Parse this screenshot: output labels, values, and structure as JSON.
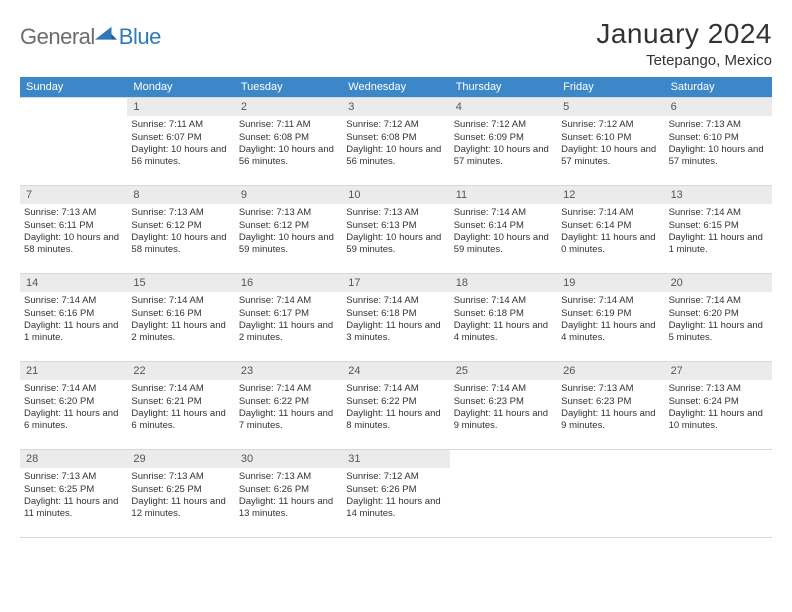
{
  "brand": {
    "general": "General",
    "blue": "Blue",
    "icon_color": "#2f79b9",
    "general_color": "#6c6c6c"
  },
  "title": "January 2024",
  "subtitle": "Tetepango, Mexico",
  "colors": {
    "header_bg": "#3b87c8",
    "header_text": "#ffffff",
    "daynum_bg": "#ebebeb",
    "border": "#d8d8d8",
    "text": "#333333"
  },
  "weekdays": [
    "Sunday",
    "Monday",
    "Tuesday",
    "Wednesday",
    "Thursday",
    "Friday",
    "Saturday"
  ],
  "start_offset": 1,
  "days": [
    {
      "n": 1,
      "sunrise": "7:11 AM",
      "sunset": "6:07 PM",
      "daylight": "10 hours and 56 minutes."
    },
    {
      "n": 2,
      "sunrise": "7:11 AM",
      "sunset": "6:08 PM",
      "daylight": "10 hours and 56 minutes."
    },
    {
      "n": 3,
      "sunrise": "7:12 AM",
      "sunset": "6:08 PM",
      "daylight": "10 hours and 56 minutes."
    },
    {
      "n": 4,
      "sunrise": "7:12 AM",
      "sunset": "6:09 PM",
      "daylight": "10 hours and 57 minutes."
    },
    {
      "n": 5,
      "sunrise": "7:12 AM",
      "sunset": "6:10 PM",
      "daylight": "10 hours and 57 minutes."
    },
    {
      "n": 6,
      "sunrise": "7:13 AM",
      "sunset": "6:10 PM",
      "daylight": "10 hours and 57 minutes."
    },
    {
      "n": 7,
      "sunrise": "7:13 AM",
      "sunset": "6:11 PM",
      "daylight": "10 hours and 58 minutes."
    },
    {
      "n": 8,
      "sunrise": "7:13 AM",
      "sunset": "6:12 PM",
      "daylight": "10 hours and 58 minutes."
    },
    {
      "n": 9,
      "sunrise": "7:13 AM",
      "sunset": "6:12 PM",
      "daylight": "10 hours and 59 minutes."
    },
    {
      "n": 10,
      "sunrise": "7:13 AM",
      "sunset": "6:13 PM",
      "daylight": "10 hours and 59 minutes."
    },
    {
      "n": 11,
      "sunrise": "7:14 AM",
      "sunset": "6:14 PM",
      "daylight": "10 hours and 59 minutes."
    },
    {
      "n": 12,
      "sunrise": "7:14 AM",
      "sunset": "6:14 PM",
      "daylight": "11 hours and 0 minutes."
    },
    {
      "n": 13,
      "sunrise": "7:14 AM",
      "sunset": "6:15 PM",
      "daylight": "11 hours and 1 minute."
    },
    {
      "n": 14,
      "sunrise": "7:14 AM",
      "sunset": "6:16 PM",
      "daylight": "11 hours and 1 minute."
    },
    {
      "n": 15,
      "sunrise": "7:14 AM",
      "sunset": "6:16 PM",
      "daylight": "11 hours and 2 minutes."
    },
    {
      "n": 16,
      "sunrise": "7:14 AM",
      "sunset": "6:17 PM",
      "daylight": "11 hours and 2 minutes."
    },
    {
      "n": 17,
      "sunrise": "7:14 AM",
      "sunset": "6:18 PM",
      "daylight": "11 hours and 3 minutes."
    },
    {
      "n": 18,
      "sunrise": "7:14 AM",
      "sunset": "6:18 PM",
      "daylight": "11 hours and 4 minutes."
    },
    {
      "n": 19,
      "sunrise": "7:14 AM",
      "sunset": "6:19 PM",
      "daylight": "11 hours and 4 minutes."
    },
    {
      "n": 20,
      "sunrise": "7:14 AM",
      "sunset": "6:20 PM",
      "daylight": "11 hours and 5 minutes."
    },
    {
      "n": 21,
      "sunrise": "7:14 AM",
      "sunset": "6:20 PM",
      "daylight": "11 hours and 6 minutes."
    },
    {
      "n": 22,
      "sunrise": "7:14 AM",
      "sunset": "6:21 PM",
      "daylight": "11 hours and 6 minutes."
    },
    {
      "n": 23,
      "sunrise": "7:14 AM",
      "sunset": "6:22 PM",
      "daylight": "11 hours and 7 minutes."
    },
    {
      "n": 24,
      "sunrise": "7:14 AM",
      "sunset": "6:22 PM",
      "daylight": "11 hours and 8 minutes."
    },
    {
      "n": 25,
      "sunrise": "7:14 AM",
      "sunset": "6:23 PM",
      "daylight": "11 hours and 9 minutes."
    },
    {
      "n": 26,
      "sunrise": "7:13 AM",
      "sunset": "6:23 PM",
      "daylight": "11 hours and 9 minutes."
    },
    {
      "n": 27,
      "sunrise": "7:13 AM",
      "sunset": "6:24 PM",
      "daylight": "11 hours and 10 minutes."
    },
    {
      "n": 28,
      "sunrise": "7:13 AM",
      "sunset": "6:25 PM",
      "daylight": "11 hours and 11 minutes."
    },
    {
      "n": 29,
      "sunrise": "7:13 AM",
      "sunset": "6:25 PM",
      "daylight": "11 hours and 12 minutes."
    },
    {
      "n": 30,
      "sunrise": "7:13 AM",
      "sunset": "6:26 PM",
      "daylight": "11 hours and 13 minutes."
    },
    {
      "n": 31,
      "sunrise": "7:12 AM",
      "sunset": "6:26 PM",
      "daylight": "11 hours and 14 minutes."
    }
  ],
  "labels": {
    "sunrise": "Sunrise:",
    "sunset": "Sunset:",
    "daylight": "Daylight:"
  }
}
